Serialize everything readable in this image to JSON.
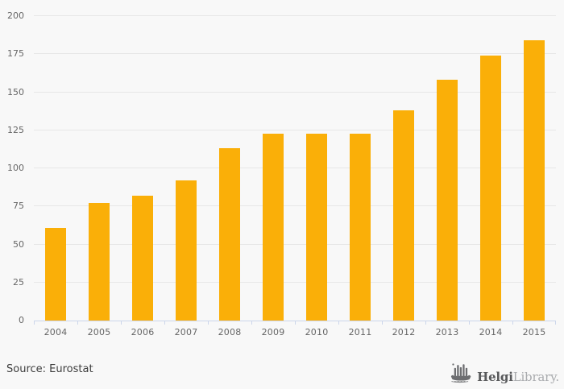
{
  "chart_data": {
    "type": "bar",
    "title": "",
    "xlabel": "",
    "ylabel": "",
    "categories": [
      "2004",
      "2005",
      "2006",
      "2007",
      "2008",
      "2009",
      "2010",
      "2011",
      "2012",
      "2013",
      "2014",
      "2015"
    ],
    "values": [
      61,
      77,
      82,
      92,
      113,
      123,
      123,
      123,
      138,
      158,
      174,
      184
    ],
    "ylim": [
      0,
      200
    ],
    "yticks": [
      0,
      25,
      50,
      75,
      100,
      125,
      150,
      175,
      200
    ],
    "grid": "horizontal",
    "legend": "none",
    "bar_color": "#FAAF08",
    "gridline_color": "#e7e7e7",
    "axis_line_color": "#ccd6eb",
    "tick_label_color": "#666666"
  },
  "footer": {
    "source_label": "Source: Eurostat"
  },
  "branding": {
    "icon": "helgi-steamboat-icon",
    "name_bold": "Helgi",
    "name_light": "Library.",
    "icon_color": "#6d6e71"
  }
}
